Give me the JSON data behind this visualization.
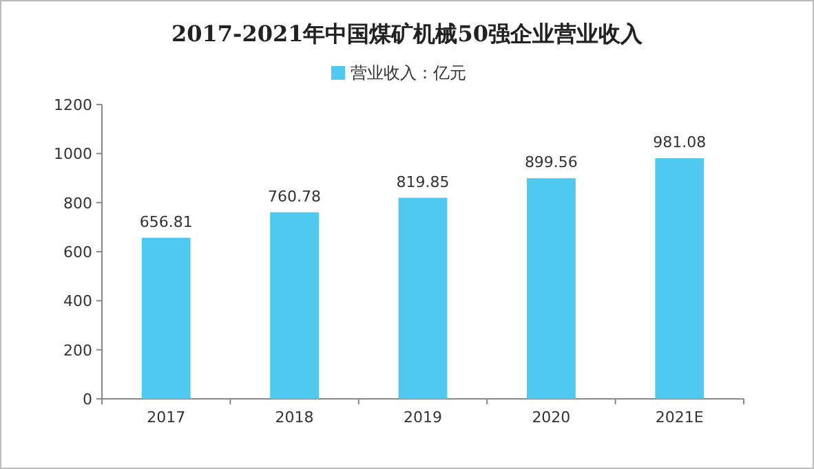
{
  "chart_data": {
    "type": "bar",
    "title": "2017-2021年中国煤矿机械50强企业营业收入",
    "categories": [
      "2017",
      "2018",
      "2019",
      "2020",
      "2021E"
    ],
    "series": [
      {
        "name": "营业收入：亿元",
        "color": "#4fc9f0",
        "values": [
          656.81,
          760.78,
          819.85,
          899.56,
          981.08
        ]
      }
    ],
    "ylim": [
      0,
      1200
    ],
    "yticks": [
      0,
      200,
      400,
      600,
      800,
      1000,
      1200
    ],
    "data_labels": true,
    "legend": "top",
    "grid": false
  }
}
